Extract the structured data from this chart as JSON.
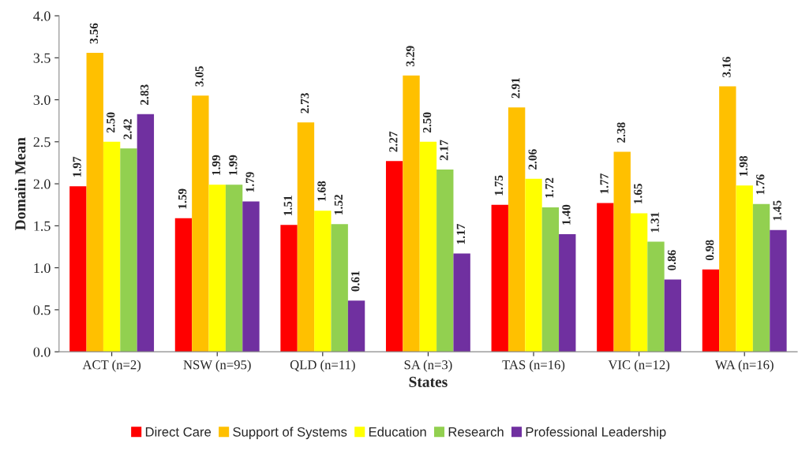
{
  "chart_data": {
    "type": "bar",
    "xlabel": "States",
    "ylabel": "Domain Mean",
    "categories": [
      "ACT (n=2)",
      "NSW (n=95)",
      "QLD (n=11)",
      "SA (n=3)",
      "TAS (n=16)",
      "VIC (n=12)",
      "WA (n=16)"
    ],
    "series": [
      {
        "name": "Direct Care",
        "color": "#ff0000",
        "values": [
          1.97,
          1.59,
          1.51,
          2.27,
          1.75,
          1.77,
          0.98
        ],
        "value_labels": [
          "1.97",
          "1.59",
          "1.51",
          "2.27",
          "1.75",
          "1.77",
          "0.98"
        ]
      },
      {
        "name": "Support of Systems",
        "color": "#ffc000",
        "values": [
          3.56,
          3.05,
          2.73,
          3.29,
          2.91,
          2.38,
          3.16
        ],
        "value_labels": [
          "3.56",
          "3.05",
          "2.73",
          "3.29",
          "2.91",
          "2.38",
          "3.16"
        ]
      },
      {
        "name": "Education",
        "color": "#ffff00",
        "values": [
          2.5,
          1.99,
          1.68,
          2.5,
          2.06,
          1.65,
          1.98
        ],
        "value_labels": [
          "2.50",
          "1.99",
          "1.68",
          "2.50",
          "2.06",
          "1.65",
          "1.98"
        ]
      },
      {
        "name": "Research",
        "color": "#92d050",
        "values": [
          2.42,
          1.99,
          1.52,
          2.17,
          1.72,
          1.31,
          1.76
        ],
        "value_labels": [
          "2.42",
          "1.99",
          "1.52",
          "2.17",
          "1.72",
          "1.31",
          "1.76"
        ]
      },
      {
        "name": "Professional Leadership",
        "color": "#7030a0",
        "values": [
          2.83,
          1.79,
          0.61,
          1.17,
          1.4,
          0.86,
          1.45
        ],
        "value_labels": [
          "2.83",
          "1.79",
          "0.61",
          "1.17",
          "1.40",
          "0.86",
          "1.45"
        ]
      }
    ],
    "ylim": [
      0,
      4
    ],
    "yticks": [
      {
        "value": 0,
        "label": "0.0"
      },
      {
        "value": 0.5,
        "label": "0.5"
      },
      {
        "value": 1,
        "label": "1.0"
      },
      {
        "value": 1.5,
        "label": "1.5"
      },
      {
        "value": 2,
        "label": "2.0"
      },
      {
        "value": 2.5,
        "label": "2.5"
      },
      {
        "value": 3,
        "label": "3.0"
      },
      {
        "value": 3.5,
        "label": "3.5"
      },
      {
        "value": 4,
        "label": "4.0"
      }
    ],
    "grid": false,
    "legend": "bottom"
  }
}
